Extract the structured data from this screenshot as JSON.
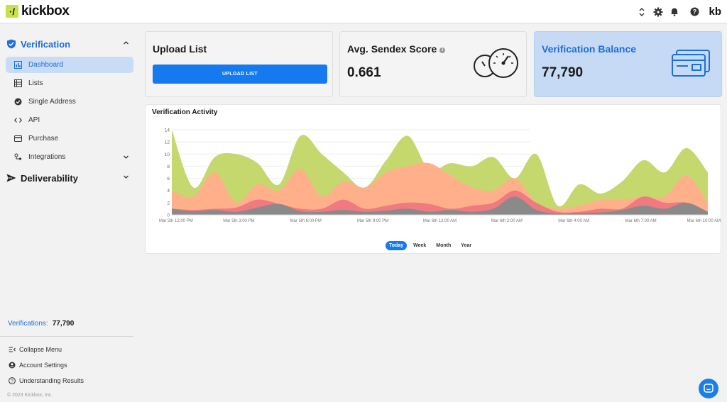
{
  "header": {
    "logo_mark": "·/",
    "logo_text": "kickbox",
    "avatar": "kb"
  },
  "sidebar": {
    "groups": [
      {
        "label": "Verification",
        "expanded": true
      },
      {
        "label": "Deliverability",
        "expanded": false
      }
    ],
    "items": [
      {
        "label": "Dashboard",
        "active": true
      },
      {
        "label": "Lists"
      },
      {
        "label": "Single Address"
      },
      {
        "label": "API"
      },
      {
        "label": "Purchase"
      },
      {
        "label": "Integrations"
      }
    ],
    "verifications_label": "Verifications:",
    "verifications_value": "77,790",
    "footer": [
      {
        "label": "Collapse Menu"
      },
      {
        "label": "Account Settings"
      },
      {
        "label": "Understanding Results"
      }
    ],
    "copyright": "© 2023 Kickbox, Inc."
  },
  "cards": {
    "upload": {
      "title": "Upload List",
      "button": "UPLOAD LIST"
    },
    "sendex": {
      "title": "Avg. Sendex Score",
      "value": "0.661",
      "info": "i"
    },
    "balance": {
      "title": "Verification Balance",
      "value": "77,790"
    }
  },
  "chart_panel": {
    "title": "Verification Activity",
    "tabs": [
      {
        "label": "Today",
        "active": true
      },
      {
        "label": "Week"
      },
      {
        "label": "Month"
      },
      {
        "label": "Year"
      }
    ]
  },
  "colors": {
    "accent": "#1579f0",
    "balance_bg": "#c6daf6",
    "series_green": "#c5d86d",
    "series_salmon": "#ffb08a",
    "series_red": "#ef7a80",
    "series_gray": "#8a8a8a"
  },
  "chart_data": {
    "type": "area",
    "stacked": false,
    "title": "Verification Activity",
    "ylim": [
      0,
      14
    ],
    "yticks": [
      0,
      2,
      4,
      6,
      8,
      10,
      12,
      14
    ],
    "x_tick_labels": [
      "Mar 5th 12:00 PM",
      "Mar 5th 3:00 PM",
      "Mar 5th 6:00 PM",
      "Mar 5th 9:00 PM",
      "Mar 6th 12:00 AM",
      "Mar 6th 2:00 AM",
      "Mar 6th 4:00 AM",
      "Mar 6th 7:00 AM",
      "Mar 6th 10:00 AM"
    ],
    "n_points": 26,
    "series": [
      {
        "color": "#c5d86d",
        "values": [
          14,
          4.5,
          9.5,
          10,
          8.5,
          5,
          13,
          10,
          7,
          4.5,
          9,
          13,
          7.5,
          8.5,
          8,
          9.5,
          6,
          10,
          1.5,
          5,
          3.5,
          5.5,
          9,
          7,
          11,
          7
        ]
      },
      {
        "color": "#ffb08a",
        "values": [
          4,
          3,
          7,
          2,
          5,
          4,
          7.5,
          3,
          5.5,
          4.5,
          7,
          8,
          8.5,
          6.5,
          4.5,
          4,
          6,
          2,
          1,
          1.5,
          2.5,
          2.5,
          3,
          3,
          6.5,
          2
        ]
      },
      {
        "color": "#ef7a80",
        "values": [
          1,
          0.8,
          1,
          1.2,
          2.5,
          1.8,
          1,
          1,
          2.5,
          1,
          1.5,
          2,
          1.8,
          1,
          1.5,
          2,
          4,
          2,
          0.5,
          0.5,
          1,
          1,
          3,
          2,
          2,
          0.5
        ]
      },
      {
        "color": "#8a8a8a",
        "values": [
          1,
          0.6,
          0.8,
          0.5,
          1.2,
          1.8,
          0.6,
          0.5,
          0.8,
          0.5,
          0.7,
          1,
          0.5,
          0.8,
          0.5,
          1,
          3,
          0.8,
          0.2,
          0.3,
          0.4,
          0.8,
          1.5,
          1,
          2,
          0.5
        ]
      }
    ]
  }
}
